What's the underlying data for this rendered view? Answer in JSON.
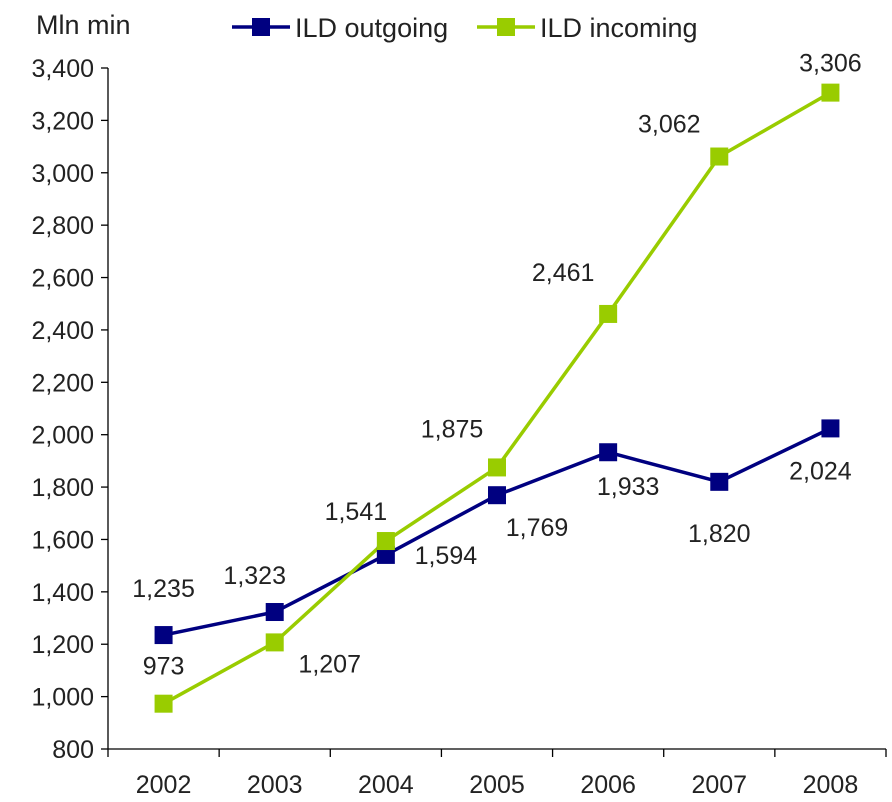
{
  "chart_data": {
    "type": "line",
    "unit_label": "Mln min",
    "categories": [
      "2002",
      "2003",
      "2004",
      "2005",
      "2006",
      "2007",
      "2008"
    ],
    "ylim": [
      800,
      3400
    ],
    "yticks": [
      800,
      1000,
      1200,
      1400,
      1600,
      1800,
      2000,
      2200,
      2400,
      2600,
      2800,
      3000,
      3200,
      3400
    ],
    "ytick_labels": [
      "800",
      "1,000",
      "1,200",
      "1,400",
      "1,600",
      "1,800",
      "2,000",
      "2,200",
      "2,400",
      "2,600",
      "2,800",
      "3,000",
      "3,200",
      "3,400"
    ],
    "grid": false,
    "legend_position": "top",
    "series": [
      {
        "name": "ILD outgoing",
        "color": "#000080",
        "values": [
          1235,
          1323,
          1541,
          1769,
          1933,
          1820,
          2024
        ],
        "labels": [
          "1,235",
          "1,323",
          "1,541",
          "1,769",
          "1,933",
          "1,820",
          "2,024"
        ]
      },
      {
        "name": "ILD incoming",
        "color": "#99CC00",
        "values": [
          973,
          1207,
          1594,
          1875,
          2461,
          3062,
          3306
        ],
        "labels": [
          "973",
          "1,207",
          "1,594",
          "1,875",
          "2,461",
          "3,062",
          "3,306"
        ]
      }
    ]
  }
}
